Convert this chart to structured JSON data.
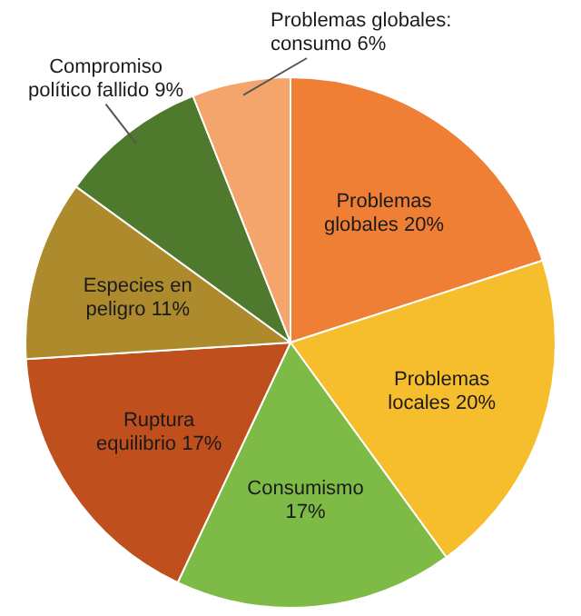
{
  "chart_data": {
    "type": "pie",
    "categories": [
      "Problemas globales",
      "Problemas locales",
      "Consumismo",
      "Ruptura equilibrio",
      "Especies en peligro",
      "Compromiso político fallido",
      "Problemas globales: consumo"
    ],
    "values": [
      20,
      20,
      17,
      17,
      11,
      9,
      6
    ],
    "value_labels": [
      "20%",
      "20%",
      "17%",
      "17%",
      "11%",
      "9%",
      "6%"
    ],
    "colors": [
      "#ef7f34",
      "#f6be2c",
      "#7dbb46",
      "#bf4f1c",
      "#ad8a2c",
      "#4f7a2d",
      "#f3a56c"
    ],
    "legend": false
  }
}
